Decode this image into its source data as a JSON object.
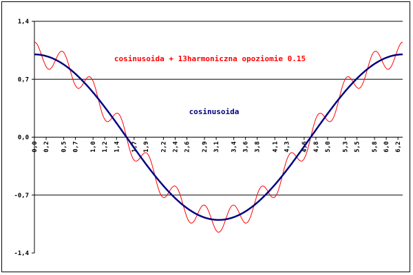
{
  "chart_data": {
    "type": "line",
    "title": "",
    "xlabel": "",
    "ylabel": "",
    "xlim": [
      0,
      6.28
    ],
    "ylim": [
      -1.4,
      1.4
    ],
    "y_ticks": [
      "1,4",
      "0,7",
      "0,0",
      "-0,7",
      "-1,4"
    ],
    "y_tick_values": [
      1.4,
      0.7,
      0.0,
      -0.7,
      -1.4
    ],
    "gridlines_y": [
      0.7,
      -0.7,
      1.4
    ],
    "x_ticks": [
      "0,0",
      "0,2",
      "0,5",
      "0,7",
      "1,0",
      "1,2",
      "1,4",
      "1,7",
      "1,9",
      "2,2",
      "2,4",
      "2,6",
      "2,9",
      "3,1",
      "3,4",
      "3,6",
      "3,8",
      "4,1",
      "4,3",
      "4,6",
      "4,8",
      "5,0",
      "5,3",
      "5,5",
      "5,8",
      "6,0",
      "6,2"
    ],
    "x_tick_values": [
      0.0,
      0.2,
      0.5,
      0.7,
      1.0,
      1.2,
      1.4,
      1.7,
      1.9,
      2.2,
      2.4,
      2.6,
      2.9,
      3.1,
      3.4,
      3.6,
      3.8,
      4.1,
      4.3,
      4.6,
      4.8,
      5.0,
      5.3,
      5.5,
      5.8,
      6.0,
      6.2
    ],
    "series": [
      {
        "name": "cosinusoida + 13harmoniczna opoziomie 0.15",
        "color": "#ff0000",
        "formula": "cos(x) + 0.15*cos(13x)",
        "x_range": [
          0,
          6.28
        ],
        "samples": 300
      },
      {
        "name": "cosinusoida",
        "color": "#000080",
        "formula": "cos(x)",
        "x_range": [
          0,
          6.28
        ],
        "samples": 300
      }
    ],
    "grid": true,
    "legend": "inline-labels"
  }
}
